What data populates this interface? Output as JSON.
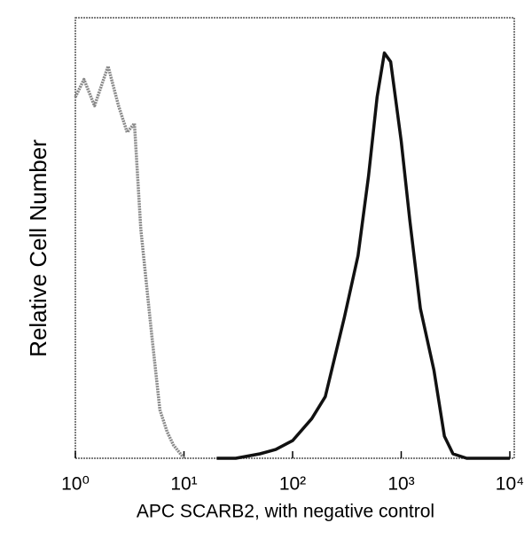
{
  "chart_data": {
    "type": "line",
    "x_label": "APC SCARB2, with negative control",
    "y_label": "Relative Cell Number",
    "x": [
      1,
      1.2,
      1.5,
      2,
      2.5,
      3,
      3.5,
      4,
      5,
      6,
      7,
      8,
      10,
      15,
      20,
      30,
      50,
      70,
      100,
      150,
      200,
      300,
      400,
      500,
      600,
      700,
      800,
      1000,
      1200,
      1500,
      2000,
      2500,
      3000,
      4000,
      5000,
      10000
    ],
    "series": [
      {
        "color": "#8a8a8a",
        "values": [
          82,
          86,
          80,
          89,
          80,
          74,
          76,
          52,
          29,
          11,
          6,
          3,
          0,
          null,
          null,
          null,
          null,
          null,
          null,
          null,
          null,
          null,
          null,
          null,
          null,
          null,
          null,
          null,
          null,
          null,
          null,
          null,
          null,
          null,
          null,
          null
        ]
      },
      {
        "color": "#111111",
        "values": [
          null,
          null,
          null,
          null,
          null,
          null,
          null,
          null,
          null,
          null,
          null,
          null,
          null,
          null,
          0,
          0,
          1,
          2,
          4,
          9,
          14,
          32,
          46,
          64,
          82,
          92,
          90,
          72,
          54,
          34,
          20,
          5,
          1,
          0,
          0,
          0
        ]
      }
    ],
    "xscale": "log",
    "xlim": [
      1,
      10000
    ],
    "ylim": [
      0,
      100
    ],
    "xticks": [
      {
        "value": 1,
        "label": "10⁰"
      },
      {
        "value": 10,
        "label": "10¹"
      },
      {
        "value": 100,
        "label": "10²"
      },
      {
        "value": 1000,
        "label": "10³"
      },
      {
        "value": 10000,
        "label": "10⁴"
      }
    ]
  }
}
